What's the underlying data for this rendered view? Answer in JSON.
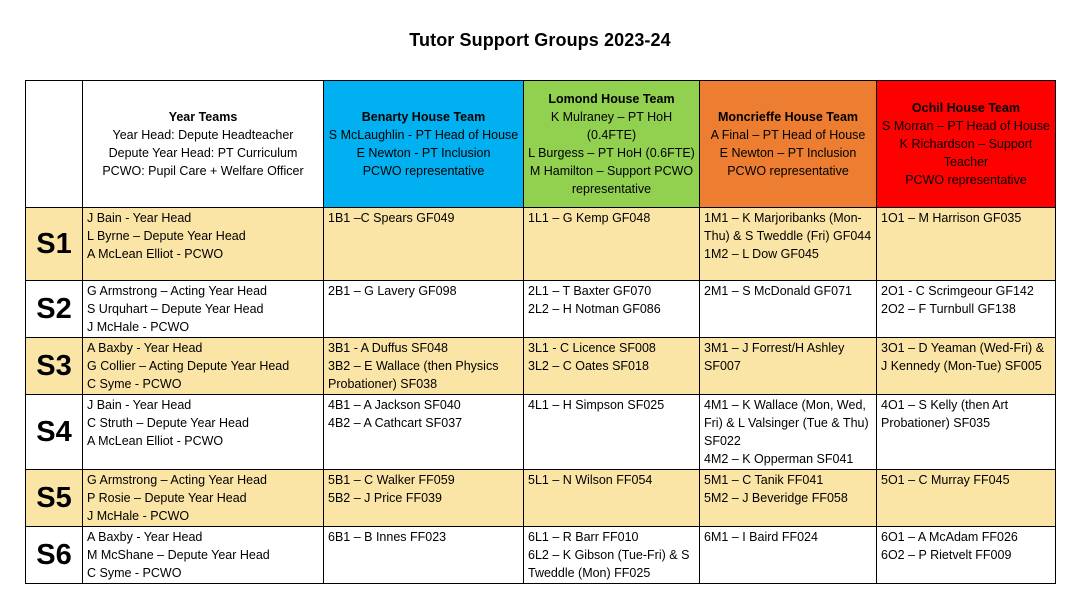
{
  "title": "Tutor Support Groups 2023-24",
  "header": {
    "year_teams": {
      "heading": "Year Teams",
      "lines": [
        "Year Head: Depute Headteacher",
        "Depute Year Head: PT Curriculum",
        "PCWO: Pupil Care + Welfare Officer"
      ]
    },
    "benarty": {
      "heading": "Benarty House Team",
      "lines": [
        "S McLaughlin - PT Head of House",
        "E Newton - PT Inclusion",
        "PCWO representative"
      ]
    },
    "lomond": {
      "heading": "Lomond House Team",
      "lines": [
        "K Mulraney – PT HoH (0.4FTE)",
        "L Burgess – PT HoH (0.6FTE)",
        "M Hamilton – Support PCWO representative"
      ]
    },
    "moncrieffe": {
      "heading": "Moncrieffe House Team",
      "lines": [
        "A Final – PT Head of House",
        "E Newton – PT Inclusion",
        "PCWO representative"
      ]
    },
    "ochil": {
      "heading": "Ochil House Team",
      "lines": [
        "S Morran – PT Head of House",
        "K Richardson – Support Teacher",
        "PCWO representative"
      ]
    }
  },
  "rows": [
    {
      "year": "S1",
      "team": [
        "J Bain - Year Head",
        "L Byrne – Depute Year Head",
        "A McLean Elliot - PCWO"
      ],
      "benarty": [
        "1B1 –C Spears GF049"
      ],
      "lomond": [
        "1L1 – G Kemp GF048"
      ],
      "moncrieffe": [
        "1M1 – K Marjoribanks (Mon-Thu) & S Tweddle (Fri) GF044",
        "1M2 – L Dow GF045"
      ],
      "ochil": [
        "1O1 – M Harrison GF035"
      ]
    },
    {
      "year": "S2",
      "team": [
        "G Armstrong – Acting Year Head",
        "S Urquhart – Depute Year Head",
        "J McHale - PCWO"
      ],
      "benarty": [
        "2B1 – G Lavery GF098"
      ],
      "lomond": [
        "2L1 – T Baxter GF070",
        "2L2 – H Notman GF086"
      ],
      "moncrieffe": [
        "2M1 – S McDonald GF071"
      ],
      "ochil": [
        "2O1 - C Scrimgeour GF142",
        "2O2 – F Turnbull GF138"
      ]
    },
    {
      "year": "S3",
      "team": [
        "A Baxby - Year Head",
        "G Collier – Acting Depute Year Head",
        "C Syme - PCWO"
      ],
      "benarty": [
        "3B1 - A Duffus SF048",
        "3B2 – E Wallace (then Physics Probationer) SF038"
      ],
      "lomond": [
        "3L1 - C Licence SF008",
        "3L2 – C Oates SF018"
      ],
      "moncrieffe": [
        "3M1 – J Forrest/H Ashley SF007"
      ],
      "ochil": [
        "3O1 – D Yeaman (Wed-Fri) & J Kennedy (Mon-Tue) SF005"
      ]
    },
    {
      "year": "S4",
      "team": [
        "J Bain - Year Head",
        "C Struth – Depute Year Head",
        "A McLean Elliot - PCWO"
      ],
      "benarty": [
        "4B1 – A Jackson SF040",
        "4B2 – A Cathcart SF037"
      ],
      "lomond": [
        "4L1 – H Simpson SF025"
      ],
      "moncrieffe": [
        "4M1 – K Wallace (Mon, Wed, Fri) & L Valsinger (Tue & Thu) SF022",
        "4M2 – K Opperman SF041"
      ],
      "ochil": [
        "4O1 – S Kelly (then Art Probationer) SF035"
      ]
    },
    {
      "year": "S5",
      "team": [
        "G Armstrong – Acting Year Head",
        "P Rosie – Depute Year Head",
        "J McHale - PCWO"
      ],
      "benarty": [
        "5B1 – C Walker FF059",
        "5B2 – J Price FF039"
      ],
      "lomond": [
        "5L1 – N Wilson FF054"
      ],
      "moncrieffe": [
        "5M1 – C Tanik FF041",
        "5M2 – J Beveridge FF058"
      ],
      "ochil": [
        "5O1 – C Murray FF045"
      ]
    },
    {
      "year": "S6",
      "team": [
        "A Baxby - Year Head",
        "M McShane – Depute Year Head",
        "C Syme - PCWO"
      ],
      "benarty": [
        "6B1 – B Innes FF023"
      ],
      "lomond": [
        "6L1 – R Barr FF010",
        "6L2 – K Gibson (Tue-Fri) & S Tweddle (Mon) FF025"
      ],
      "moncrieffe": [
        "6M1 – I Baird FF024"
      ],
      "ochil": [
        "6O1 – A McAdam FF026",
        "6O2 – P Rietvelt FF009"
      ]
    }
  ],
  "colors": {
    "benarty": "#00b0f0",
    "lomond": "#92d050",
    "moncrieffe": "#ed7d31",
    "ochil": "#ff0000",
    "row_highlight": "#fbe5a6"
  }
}
